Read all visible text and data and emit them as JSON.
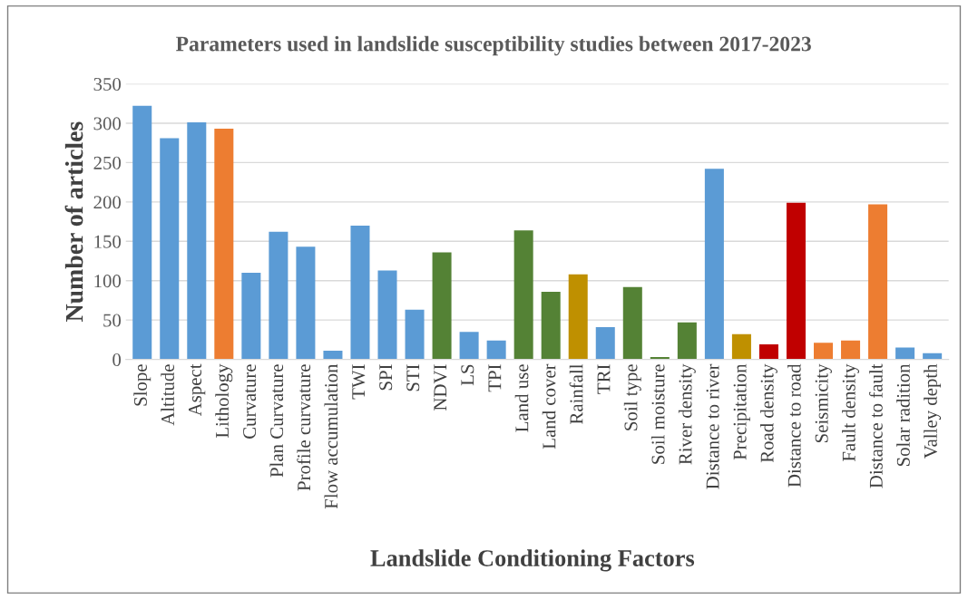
{
  "chart_data": {
    "type": "bar",
    "title": "Parameters used in landslide susceptibility studies between 2017-2023",
    "xlabel": "Landslide Conditioning Factors",
    "ylabel": "Number of articles",
    "categories": [
      "Slope",
      "Altitude",
      "Aspect",
      "Lithology",
      "Curvature",
      "Plan Curvature",
      "Profile curvature",
      "Flow accumulation",
      "TWI",
      "SPI",
      "STI",
      "NDVI",
      "LS",
      "TPI",
      "Land use",
      "Land cover",
      "Rainfall",
      "TRI",
      "Soil type",
      "Soil moisture",
      "River density",
      "Distance to river",
      "Precipitation",
      "Road density",
      "Distance to road",
      "Seismicity",
      "Fault density",
      "Distance to fault",
      "Solar radition",
      "Valley depth"
    ],
    "values": [
      322,
      281,
      301,
      293,
      110,
      162,
      143,
      11,
      170,
      113,
      63,
      136,
      35,
      24,
      164,
      86,
      108,
      41,
      92,
      3,
      47,
      242,
      32,
      19,
      199,
      21,
      24,
      197,
      15,
      8
    ],
    "colors": [
      "#5b9bd5",
      "#5b9bd5",
      "#5b9bd5",
      "#ed7d31",
      "#5b9bd5",
      "#5b9bd5",
      "#5b9bd5",
      "#5b9bd5",
      "#5b9bd5",
      "#5b9bd5",
      "#5b9bd5",
      "#548235",
      "#5b9bd5",
      "#5b9bd5",
      "#548235",
      "#548235",
      "#bf9000",
      "#5b9bd5",
      "#548235",
      "#548235",
      "#548235",
      "#5b9bd5",
      "#bf9000",
      "#c00000",
      "#c00000",
      "#ed7d31",
      "#ed7d31",
      "#ed7d31",
      "#5b9bd5",
      "#5b9bd5"
    ],
    "ylim": [
      0,
      350
    ],
    "yticks": [
      0,
      50,
      100,
      150,
      200,
      250,
      300,
      350
    ],
    "grid": "y",
    "legend": false
  }
}
